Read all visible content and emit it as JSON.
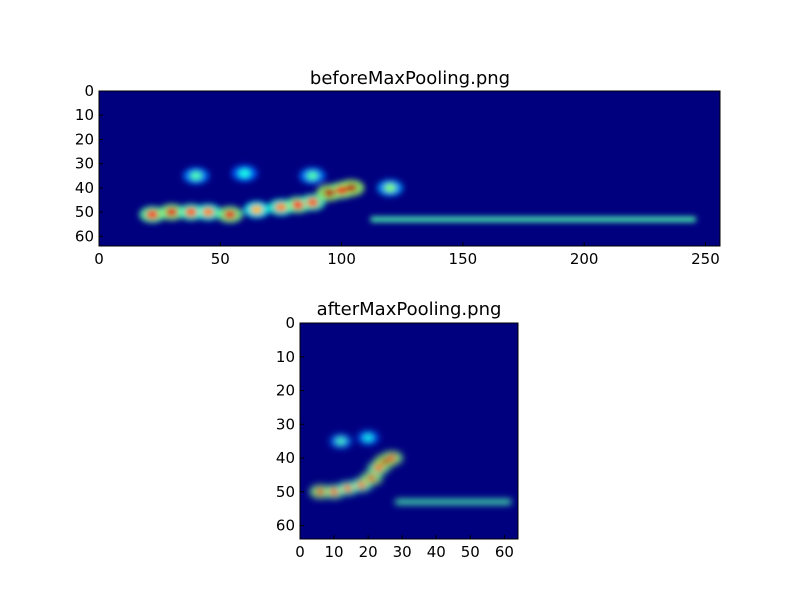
{
  "chart_data": [
    {
      "type": "heatmap",
      "title": "beforeMaxPooling.png",
      "xlabel": "",
      "ylabel": "",
      "xlim": [
        0,
        256
      ],
      "ylim": [
        64,
        0
      ],
      "y_inverted": true,
      "colormap": "jet",
      "background_color": "#00007f",
      "xticks": [
        0,
        50,
        100,
        150,
        200,
        250
      ],
      "yticks": [
        0,
        10,
        20,
        30,
        40,
        50,
        60
      ],
      "hot_spots": [
        {
          "x": 22,
          "y": 51,
          "intensity": 0.85
        },
        {
          "x": 30,
          "y": 50,
          "intensity": 0.9
        },
        {
          "x": 38,
          "y": 50,
          "intensity": 0.8
        },
        {
          "x": 45,
          "y": 50,
          "intensity": 0.75
        },
        {
          "x": 54,
          "y": 51,
          "intensity": 0.9
        },
        {
          "x": 65,
          "y": 49,
          "intensity": 0.7
        },
        {
          "x": 75,
          "y": 48,
          "intensity": 0.75
        },
        {
          "x": 82,
          "y": 47,
          "intensity": 0.85
        },
        {
          "x": 88,
          "y": 46,
          "intensity": 0.8
        },
        {
          "x": 95,
          "y": 42,
          "intensity": 0.95
        },
        {
          "x": 100,
          "y": 41,
          "intensity": 0.9
        },
        {
          "x": 104,
          "y": 40,
          "intensity": 0.95
        },
        {
          "x": 120,
          "y": 40,
          "intensity": 0.5
        },
        {
          "x": 40,
          "y": 35,
          "intensity": 0.45
        },
        {
          "x": 60,
          "y": 34,
          "intensity": 0.4
        },
        {
          "x": 88,
          "y": 35,
          "intensity": 0.45
        }
      ],
      "horizontal_band": {
        "y": 53,
        "x_start": 112,
        "x_end": 246,
        "intensity": 0.45
      }
    },
    {
      "type": "heatmap",
      "title": "afterMaxPooling.png",
      "xlabel": "",
      "ylabel": "",
      "xlim": [
        0,
        64
      ],
      "ylim": [
        64,
        0
      ],
      "y_inverted": true,
      "colormap": "jet",
      "background_color": "#00007f",
      "xticks": [
        0,
        10,
        20,
        30,
        40,
        50,
        60
      ],
      "yticks": [
        0,
        10,
        20,
        30,
        40,
        50,
        60
      ],
      "hot_spots": [
        {
          "x": 6,
          "y": 50,
          "intensity": 0.9
        },
        {
          "x": 10,
          "y": 50,
          "intensity": 0.85
        },
        {
          "x": 14,
          "y": 49,
          "intensity": 0.8
        },
        {
          "x": 18,
          "y": 48,
          "intensity": 0.8
        },
        {
          "x": 21,
          "y": 46,
          "intensity": 0.9
        },
        {
          "x": 23,
          "y": 43,
          "intensity": 0.85
        },
        {
          "x": 25,
          "y": 41,
          "intensity": 0.95
        },
        {
          "x": 27,
          "y": 40,
          "intensity": 0.9
        },
        {
          "x": 12,
          "y": 35,
          "intensity": 0.45
        },
        {
          "x": 20,
          "y": 34,
          "intensity": 0.4
        }
      ],
      "horizontal_band": {
        "y": 53,
        "x_start": 28,
        "x_end": 62,
        "intensity": 0.45
      }
    }
  ]
}
